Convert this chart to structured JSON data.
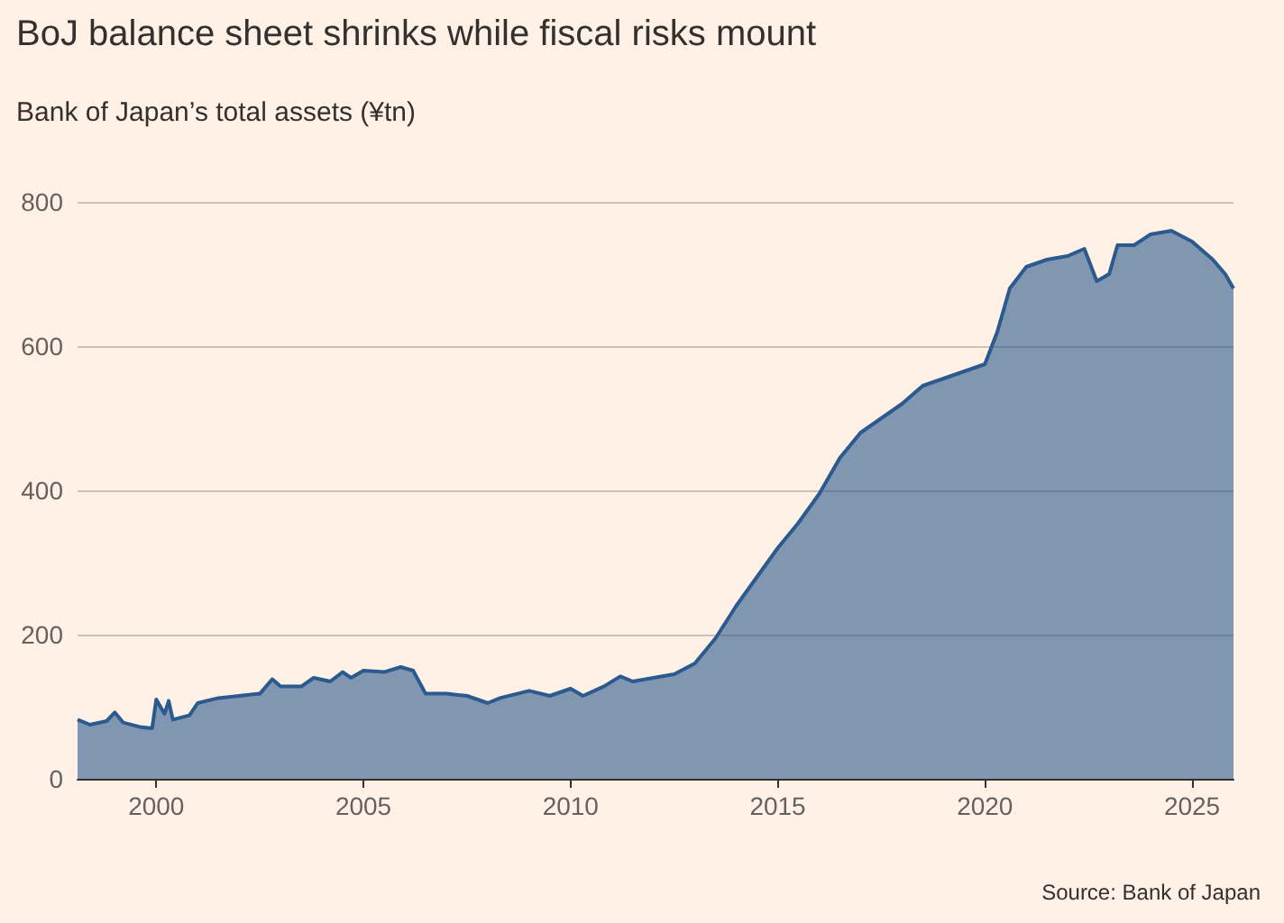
{
  "chart_data": {
    "type": "area",
    "title": "BoJ balance sheet shrinks while fiscal risks mount",
    "subtitle": "Bank of Japan’s total assets (¥tn)",
    "x": [
      1998.1,
      1998.4,
      1998.8,
      1999.0,
      1999.2,
      1999.6,
      1999.9,
      2000.0,
      2000.2,
      2000.3,
      2000.4,
      2000.8,
      2001.0,
      2001.5,
      2002.0,
      2002.5,
      2002.8,
      2003.0,
      2003.5,
      2003.8,
      2004.2,
      2004.5,
      2004.7,
      2005.0,
      2005.5,
      2005.9,
      2006.2,
      2006.5,
      2007.0,
      2007.5,
      2008.0,
      2008.3,
      2009.0,
      2009.5,
      2010.0,
      2010.3,
      2010.8,
      2011.2,
      2011.5,
      2012.0,
      2012.5,
      2013.0,
      2013.5,
      2014.0,
      2014.5,
      2015.0,
      2015.5,
      2016.0,
      2016.5,
      2017.0,
      2017.5,
      2018.0,
      2018.5,
      2019.0,
      2019.5,
      2020.0,
      2020.3,
      2020.6,
      2021.0,
      2021.5,
      2022.0,
      2022.4,
      2022.7,
      2023.0,
      2023.2,
      2023.6,
      2024.0,
      2024.5,
      2025.0,
      2025.5,
      2025.8,
      2026.0
    ],
    "series": [
      {
        "color": "#2b5a8e",
        "values": [
          82,
          75,
          80,
          92,
          78,
          72,
          70,
          110,
          90,
          108,
          82,
          88,
          105,
          112,
          115,
          118,
          138,
          128,
          128,
          140,
          135,
          148,
          140,
          150,
          148,
          155,
          150,
          118,
          118,
          115,
          105,
          112,
          122,
          115,
          125,
          115,
          128,
          142,
          135,
          140,
          145,
          160,
          195,
          240,
          280,
          320,
          355,
          395,
          445,
          480,
          500,
          520,
          545,
          555,
          565,
          575,
          620,
          680,
          710,
          720,
          725,
          735,
          690,
          700,
          740,
          740,
          755,
          760,
          745,
          720,
          700,
          680
        ]
      }
    ],
    "xlim": [
      1998.1,
      2026
    ],
    "xticks": [
      2000,
      2005,
      2010,
      2015,
      2020,
      2025
    ],
    "ylim": [
      0,
      800
    ],
    "yticks": [
      0,
      200,
      400,
      600,
      800
    ],
    "grid": "y",
    "annotations": [
      "Source: Bank of Japan"
    ]
  }
}
